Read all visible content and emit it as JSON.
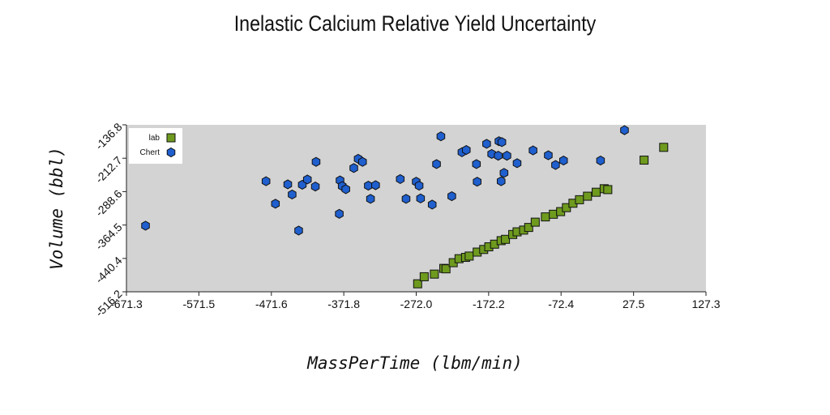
{
  "chart_data": {
    "type": "scatter",
    "title": "Inelastic Calcium Relative Yield Uncertainty",
    "xlabel": "MassPerTime (lbm/min)",
    "ylabel": "Volume (bbl)",
    "xlim": [
      -671.3,
      127.3
    ],
    "ylim": [
      -516.2,
      -136.8
    ],
    "xticks": [
      "-671.3",
      "-571.5",
      "-471.6",
      "-371.8",
      "-272.0",
      "-172.2",
      "-72.4",
      "27.5",
      "127.3"
    ],
    "yticks": [
      "-516.2",
      "-440.4",
      "-364.5",
      "-288.6",
      "-212.7",
      "-136.8"
    ],
    "legend_position": "top-left",
    "series": [
      {
        "name": "lab",
        "marker": "square",
        "color": "#6e9a1e",
        "points": [
          [
            -270,
            -498
          ],
          [
            -261,
            -482
          ],
          [
            -247,
            -476
          ],
          [
            -234,
            -463
          ],
          [
            -231,
            -464
          ],
          [
            -221,
            -450
          ],
          [
            -213,
            -441
          ],
          [
            -204,
            -438
          ],
          [
            -199,
            -435
          ],
          [
            -188,
            -426
          ],
          [
            -179,
            -420
          ],
          [
            -172,
            -414
          ],
          [
            -164,
            -408
          ],
          [
            -155,
            -400
          ],
          [
            -149,
            -397
          ],
          [
            -139,
            -386
          ],
          [
            -133,
            -380
          ],
          [
            -124,
            -376
          ],
          [
            -117,
            -370
          ],
          [
            -108,
            -358
          ],
          [
            -94,
            -346
          ],
          [
            -83,
            -340
          ],
          [
            -73,
            -334
          ],
          [
            -65,
            -325
          ],
          [
            -56,
            -315
          ],
          [
            -47,
            -307
          ],
          [
            -36,
            -299
          ],
          [
            -24,
            -290
          ],
          [
            -13,
            -282
          ],
          [
            -8,
            -284
          ],
          [
            42,
            -217
          ],
          [
            69,
            -188
          ]
        ]
      },
      {
        "name": "Chert",
        "marker": "hexagon",
        "color": "#1f5fce",
        "points": [
          [
            -645,
            -366
          ],
          [
            -479,
            -265
          ],
          [
            -466,
            -316
          ],
          [
            -449,
            -272
          ],
          [
            -443,
            -295
          ],
          [
            -434,
            -377
          ],
          [
            -429,
            -273
          ],
          [
            -422,
            -261
          ],
          [
            -410,
            -221
          ],
          [
            -411,
            -277
          ],
          [
            -378,
            -339
          ],
          [
            -377,
            -263
          ],
          [
            -374,
            -276
          ],
          [
            -369,
            -283
          ],
          [
            -358,
            -235
          ],
          [
            -352,
            -214
          ],
          [
            -346,
            -221
          ],
          [
            -338,
            -275
          ],
          [
            -335,
            -305
          ],
          [
            -328,
            -274
          ],
          [
            -294,
            -260
          ],
          [
            -286,
            -305
          ],
          [
            -272,
            -266
          ],
          [
            -268,
            -275
          ],
          [
            -266,
            -304
          ],
          [
            -250,
            -318
          ],
          [
            -244,
            -226
          ],
          [
            -238,
            -163
          ],
          [
            -223,
            -299
          ],
          [
            -209,
            -199
          ],
          [
            -203,
            -194
          ],
          [
            -189,
            -226
          ],
          [
            -188,
            -266
          ],
          [
            -175,
            -180
          ],
          [
            -168,
            -203
          ],
          [
            -158,
            -174
          ],
          [
            -159,
            -207
          ],
          [
            -155,
            -265
          ],
          [
            -154,
            -176
          ],
          [
            -151,
            -246
          ],
          [
            -147,
            -207
          ],
          [
            -133,
            -224
          ],
          [
            -111,
            -195
          ],
          [
            -90,
            -206
          ],
          [
            -80,
            -228
          ],
          [
            -69,
            -218
          ],
          [
            -18,
            -218
          ],
          [
            15,
            -149
          ]
        ]
      }
    ]
  }
}
